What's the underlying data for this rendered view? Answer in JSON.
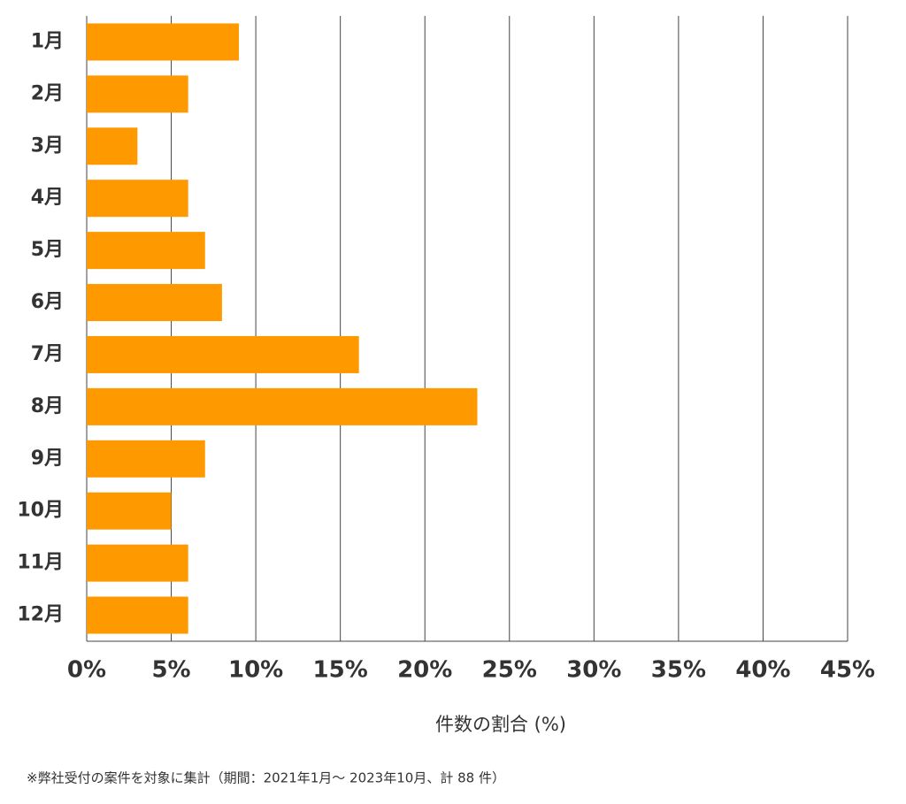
{
  "chart_data": {
    "type": "barh",
    "x_label": "件数の割合 (%)",
    "note": "※弊社受付の案件を対象に集計（期間：2021年1月～ 2023年10月、計 88 件）",
    "categories": [
      "1月",
      "2月",
      "3月",
      "4月",
      "5月",
      "6月",
      "7月",
      "8月",
      "9月",
      "10月",
      "11月",
      "12月"
    ],
    "values": [
      9.0,
      6.0,
      3.0,
      6.0,
      7.0,
      8.0,
      16.1,
      23.1,
      7.0,
      5.0,
      6.0,
      6.0
    ],
    "color": "#ff9900",
    "xlim": [
      0,
      45
    ],
    "xticks": [
      {
        "value": 0,
        "label": "0%"
      },
      {
        "value": 5,
        "label": "5%"
      },
      {
        "value": 10,
        "label": "10%"
      },
      {
        "value": 15,
        "label": "15%"
      },
      {
        "value": 20,
        "label": "20%"
      },
      {
        "value": 25,
        "label": "25%"
      },
      {
        "value": 30,
        "label": "30%"
      },
      {
        "value": 35,
        "label": "35%"
      },
      {
        "value": 40,
        "label": "40%"
      },
      {
        "value": 45,
        "label": "45%"
      }
    ],
    "grid": true
  }
}
